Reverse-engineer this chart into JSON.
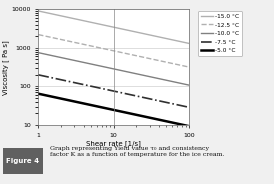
{
  "xlabel": "Shear rate [1/s]",
  "ylabel": "Viscosity [ Pa s]",
  "xlim": [
    1,
    100
  ],
  "ylim": [
    10,
    10000
  ],
  "caption_label": "Figure 4",
  "caption_text": "Graph representing Yield value τ₀ and consistency\nfactor K as a function of temperature for the ice cream.",
  "series": [
    {
      "label": "-15.0 °C",
      "color": "#b0b0b0",
      "linestyle": "solid",
      "linewidth": 1.0,
      "K": 9000,
      "n": -0.42
    },
    {
      "label": "-12.5 °C",
      "color": "#b0b0b0",
      "linestyle": "dashed",
      "linewidth": 1.0,
      "K": 2200,
      "n": -0.42
    },
    {
      "label": "-10.0 °C",
      "color": "#808080",
      "linestyle": "solid",
      "linewidth": 1.0,
      "K": 750,
      "n": -0.42
    },
    {
      "label": "-7.5 °C",
      "color": "#303030",
      "linestyle": "dashdot",
      "linewidth": 1.2,
      "K": 200,
      "n": -0.42
    },
    {
      "label": "-5.0 °C",
      "color": "#000000",
      "linestyle": "solid",
      "linewidth": 1.8,
      "K": 65,
      "n": -0.42
    }
  ],
  "background_color": "#f0f0f0",
  "plot_bg_color": "#ffffff",
  "grid_color": "#d0d0d0",
  "vline_x": 10,
  "figure_label_bg": "#606060",
  "figure_label_color": "#ffffff"
}
